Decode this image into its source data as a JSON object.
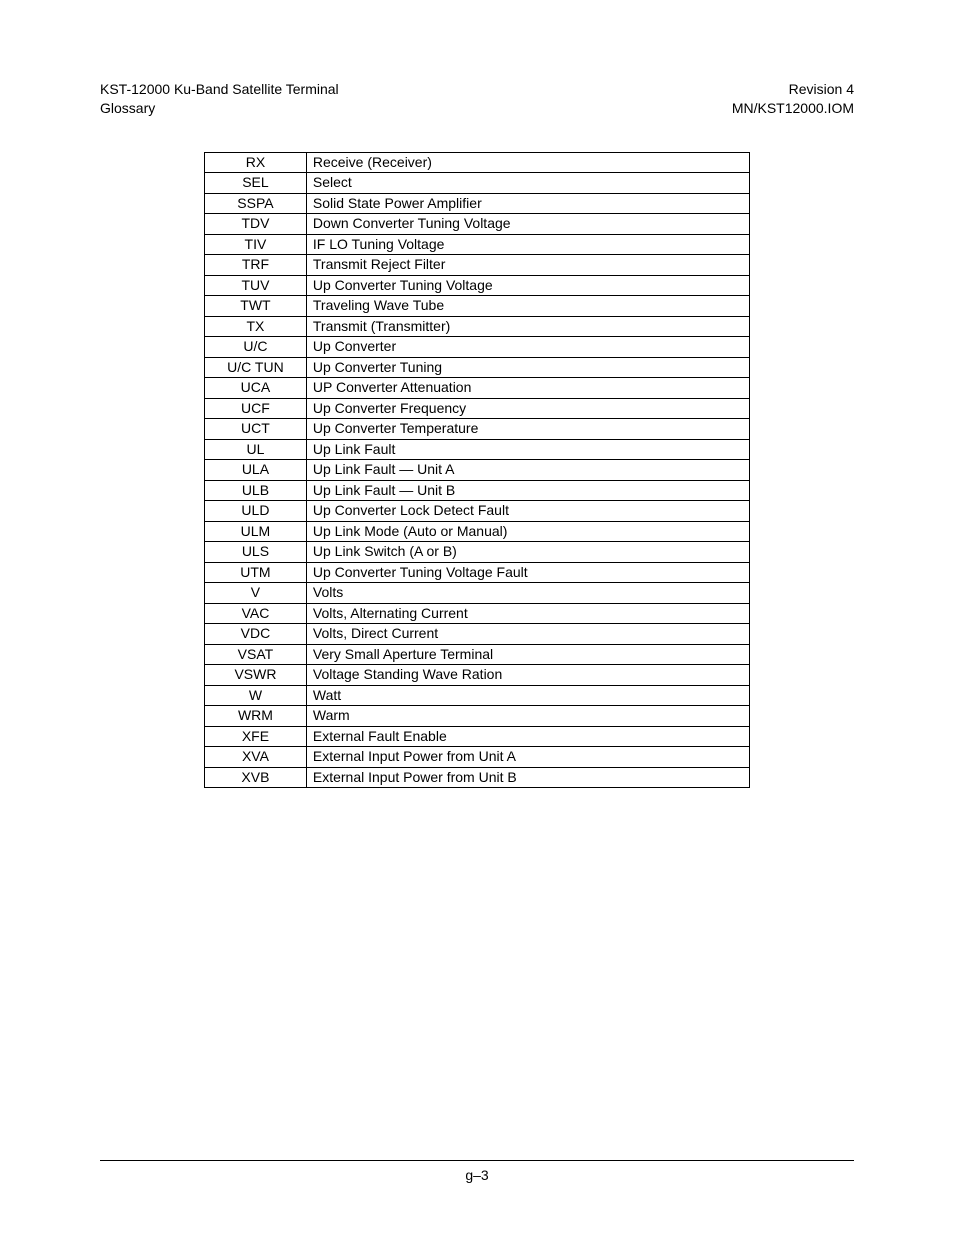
{
  "header": {
    "left_line1": "KST-12000 Ku-Band Satellite Terminal",
    "left_line2": "Glossary",
    "right_line1": "Revision 4",
    "right_line2": "MN/KST12000.IOM"
  },
  "glossary": {
    "rows": [
      {
        "abbr": "RX",
        "def": "Receive (Receiver)"
      },
      {
        "abbr": "SEL",
        "def": "Select"
      },
      {
        "abbr": "SSPA",
        "def": "Solid State Power Amplifier"
      },
      {
        "abbr": "TDV",
        "def": "Down Converter Tuning Voltage"
      },
      {
        "abbr": "TIV",
        "def": "IF LO Tuning Voltage"
      },
      {
        "abbr": "TRF",
        "def": "Transmit Reject Filter"
      },
      {
        "abbr": "TUV",
        "def": "Up Converter Tuning Voltage"
      },
      {
        "abbr": "TWT",
        "def": "Traveling Wave Tube"
      },
      {
        "abbr": "TX",
        "def": "Transmit (Transmitter)"
      },
      {
        "abbr": "U/C",
        "def": "Up Converter"
      },
      {
        "abbr": "U/C TUN",
        "def": "Up Converter Tuning"
      },
      {
        "abbr": "UCA",
        "def": "UP Converter Attenuation"
      },
      {
        "abbr": "UCF",
        "def": "Up Converter Frequency"
      },
      {
        "abbr": "UCT",
        "def": "Up Converter Temperature"
      },
      {
        "abbr": "UL",
        "def": "Up Link Fault"
      },
      {
        "abbr": "ULA",
        "def": "Up Link Fault — Unit A"
      },
      {
        "abbr": "ULB",
        "def": "Up Link Fault — Unit B"
      },
      {
        "abbr": "ULD",
        "def": "Up Converter Lock Detect Fault"
      },
      {
        "abbr": "ULM",
        "def": "Up Link Mode (Auto or Manual)"
      },
      {
        "abbr": "ULS",
        "def": "Up Link Switch (A or B)"
      },
      {
        "abbr": "UTM",
        "def": "Up Converter Tuning Voltage Fault"
      },
      {
        "abbr": "V",
        "def": "Volts"
      },
      {
        "abbr": "VAC",
        "def": "Volts, Alternating Current"
      },
      {
        "abbr": "VDC",
        "def": "Volts, Direct Current"
      },
      {
        "abbr": "VSAT",
        "def": "Very Small Aperture Terminal"
      },
      {
        "abbr": "VSWR",
        "def": "Voltage Standing Wave Ration"
      },
      {
        "abbr": "W",
        "def": "Watt"
      },
      {
        "abbr": "WRM",
        "def": "Warm"
      },
      {
        "abbr": "XFE",
        "def": "External Fault Enable"
      },
      {
        "abbr": "XVA",
        "def": "External Input Power from Unit A"
      },
      {
        "abbr": "XVB",
        "def": "External Input Power from Unit B"
      }
    ]
  },
  "footer": {
    "page_number": "g–3"
  }
}
